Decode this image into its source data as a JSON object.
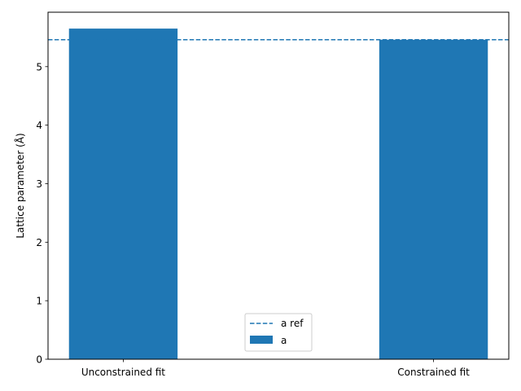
{
  "chart_data": {
    "type": "bar",
    "categories": [
      "Unconstrained fit",
      "Constrained fit"
    ],
    "series": [
      {
        "name": "a",
        "values": [
          5.65,
          5.46
        ]
      }
    ],
    "reference_lines": [
      {
        "name": "a ref",
        "y": 5.46,
        "style": "dashed"
      }
    ],
    "title": "",
    "xlabel": "",
    "ylabel": "Lattice parameter (Å)",
    "ylim": [
      0,
      5.93
    ],
    "yticks": [
      0,
      1,
      2,
      3,
      4,
      5
    ],
    "grid": false,
    "legend": {
      "placement": "lower center",
      "entries": [
        "a ref",
        "a"
      ]
    },
    "colors": {
      "bar": "#1f77b4",
      "ref_line": "#1f77b4",
      "axes": "#000000"
    }
  }
}
